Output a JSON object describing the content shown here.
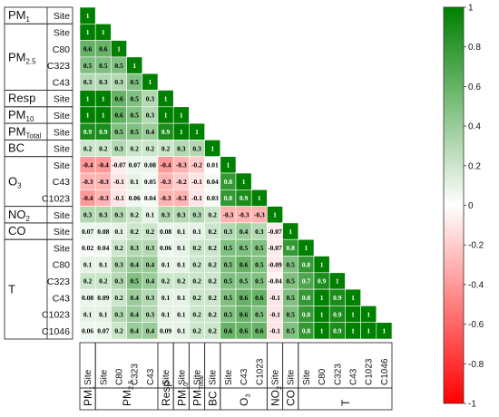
{
  "chart_data": {
    "type": "heatmap",
    "variables": [
      {
        "group": "PM1",
        "site": "Site"
      },
      {
        "group": "PM2.5",
        "site": "Site"
      },
      {
        "group": "PM2.5",
        "site": "C80"
      },
      {
        "group": "PM2.5",
        "site": "C323"
      },
      {
        "group": "PM2.5",
        "site": "C43"
      },
      {
        "group": "Resp",
        "site": "Site"
      },
      {
        "group": "PM10",
        "site": "Site"
      },
      {
        "group": "PMTotal",
        "site": "Site"
      },
      {
        "group": "BC",
        "site": "Site"
      },
      {
        "group": "O3",
        "site": "Site"
      },
      {
        "group": "O3",
        "site": "C43"
      },
      {
        "group": "O3",
        "site": "C1023"
      },
      {
        "group": "NO2",
        "site": "Site"
      },
      {
        "group": "CO",
        "site": "Site"
      },
      {
        "group": "T",
        "site": "Site"
      },
      {
        "group": "T",
        "site": "C80"
      },
      {
        "group": "T",
        "site": "C323"
      },
      {
        "group": "T",
        "site": "C43"
      },
      {
        "group": "T",
        "site": "C1023"
      },
      {
        "group": "T",
        "site": "C1046"
      }
    ],
    "groups": [
      {
        "name": "PM",
        "sub": "1",
        "start": 0,
        "end": 0
      },
      {
        "name": "PM",
        "sub": "2.5",
        "start": 1,
        "end": 4
      },
      {
        "name": "Resp",
        "sub": "",
        "start": 5,
        "end": 5
      },
      {
        "name": "PM",
        "sub": "10",
        "start": 6,
        "end": 6
      },
      {
        "name": "PM",
        "sub": "Total",
        "start": 7,
        "end": 7
      },
      {
        "name": "BC",
        "sub": "",
        "start": 8,
        "end": 8
      },
      {
        "name": "O",
        "sub": "3",
        "start": 9,
        "end": 11
      },
      {
        "name": "NO",
        "sub": "2",
        "start": 12,
        "end": 12
      },
      {
        "name": "CO",
        "sub": "",
        "start": 13,
        "end": 13
      },
      {
        "name": "T",
        "sub": "",
        "start": 14,
        "end": 19
      }
    ],
    "matrix": [
      [
        "1"
      ],
      [
        "1",
        "1"
      ],
      [
        "0.6",
        "0.6",
        "1"
      ],
      [
        "0.5",
        "0.5",
        "0.5",
        "1"
      ],
      [
        "0.3",
        "0.3",
        "0.3",
        "0.5",
        "1"
      ],
      [
        "1",
        "1",
        "0.6",
        "0.5",
        "0.3",
        "1"
      ],
      [
        "1",
        "1",
        "0.6",
        "0.5",
        "0.3",
        "1",
        "1"
      ],
      [
        "0.9",
        "0.9",
        "0.5",
        "0.5",
        "0.4",
        "0.9",
        "1",
        "1"
      ],
      [
        "0.2",
        "0.2",
        "0.3",
        "0.2",
        "0.2",
        "0.2",
        "0.3",
        "0.3",
        "1"
      ],
      [
        "-0.4",
        "-0.4",
        "-0.07",
        "0.07",
        "0.08",
        "-0.4",
        "-0.3",
        "-0.2",
        "0.01",
        "1"
      ],
      [
        "-0.3",
        "-0.3",
        "-0.1",
        "0.1",
        "0.05",
        "-0.3",
        "-0.2",
        "-0.1",
        "0.04",
        "0.8",
        "1"
      ],
      [
        "-0.4",
        "-0.3",
        "-0.1",
        "0.06",
        "0.04",
        "-0.3",
        "-0.3",
        "-0.1",
        "0.03",
        "0.8",
        "0.9",
        "1"
      ],
      [
        "0.3",
        "0.3",
        "0.3",
        "0.2",
        "0.1",
        "0.3",
        "0.3",
        "0.3",
        "0.2",
        "-0.3",
        "-0.3",
        "-0.3",
        "1"
      ],
      [
        "0.07",
        "0.08",
        "0.1",
        "0.2",
        "0.2",
        "0.08",
        "0.1",
        "0.1",
        "0.2",
        "0.3",
        "0.4",
        "0.3",
        "-0.07",
        "1"
      ],
      [
        "0.02",
        "0.04",
        "0.2",
        "0.3",
        "0.3",
        "0.06",
        "0.1",
        "0.2",
        "0.2",
        "0.5",
        "0.5",
        "0.5",
        "-0.07",
        "0.8",
        "1"
      ],
      [
        "0.1",
        "0.1",
        "0.3",
        "0.4",
        "0.4",
        "0.1",
        "0.1",
        "0.2",
        "0.2",
        "0.5",
        "0.6",
        "0.5",
        "-0.09",
        "0.5",
        "0.8",
        "1"
      ],
      [
        "0.2",
        "0.2",
        "0.3",
        "0.5",
        "0.4",
        "0.2",
        "0.2",
        "0.2",
        "0.2",
        "0.5",
        "0.5",
        "0.5",
        "-0.04",
        "0.5",
        "0.7",
        "0.9",
        "1"
      ],
      [
        "0.08",
        "0.09",
        "0.2",
        "0.4",
        "0.3",
        "0.1",
        "0.1",
        "0.2",
        "0.2",
        "0.5",
        "0.6",
        "0.6",
        "-0.1",
        "0.5",
        "0.8",
        "1",
        "0.9",
        "1"
      ],
      [
        "0.1",
        "0.1",
        "0.3",
        "0.4",
        "0.3",
        "0.1",
        "0.1",
        "0.2",
        "0.2",
        "0.5",
        "0.6",
        "0.5",
        "-0.1",
        "0.5",
        "0.8",
        "1",
        "0.9",
        "1",
        "1"
      ],
      [
        "0.06",
        "0.07",
        "0.2",
        "0.4",
        "0.4",
        "0.09",
        "0.1",
        "0.2",
        "0.2",
        "0.6",
        "0.6",
        "0.6",
        "-0.1",
        "0.5",
        "0.8",
        "1",
        "0.9",
        "1",
        "1",
        "1"
      ]
    ],
    "colorbar": {
      "range": [
        -1,
        1
      ],
      "ticks": [
        "1",
        "0.8",
        "0.6",
        "0.4",
        "0.2",
        "0",
        "-0.2",
        "-0.4",
        "-0.6",
        "-0.8",
        "-1"
      ],
      "colors": {
        "negative": "#ff0000",
        "zero": "#ffffff",
        "positive": "#008000"
      }
    }
  }
}
